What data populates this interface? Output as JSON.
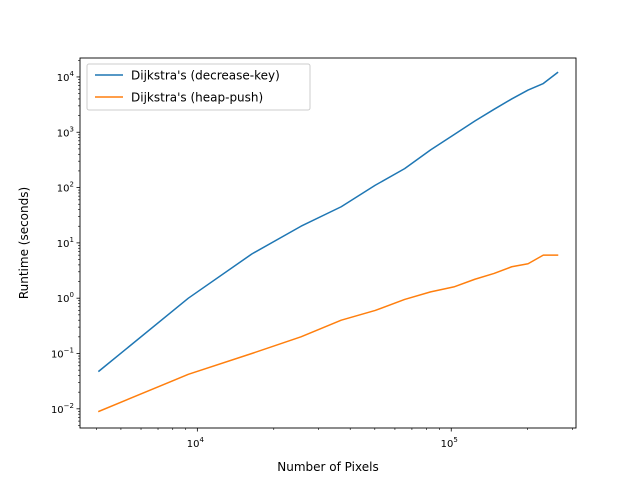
{
  "chart_data": {
    "type": "line",
    "title": "",
    "xlabel": "Number of Pixels",
    "ylabel": "Runtime (seconds)",
    "xscale": "log",
    "yscale": "log",
    "xlim": [
      3450,
      310000
    ],
    "ylim": [
      0.0045,
      22000
    ],
    "grid": false,
    "legend": "top-left",
    "x_ticks": [
      {
        "value": 10000,
        "label": "10",
        "exp": "4"
      },
      {
        "value": 100000,
        "label": "10",
        "exp": "5"
      }
    ],
    "y_ticks": [
      {
        "value": 0.01,
        "label": "10",
        "exp": "−2"
      },
      {
        "value": 0.1,
        "label": "10",
        "exp": "−1"
      },
      {
        "value": 1,
        "label": "10",
        "exp": "0"
      },
      {
        "value": 10,
        "label": "10",
        "exp": "1"
      },
      {
        "value": 100,
        "label": "10",
        "exp": "2"
      },
      {
        "value": 1000,
        "label": "10",
        "exp": "3"
      },
      {
        "value": 10000,
        "label": "10",
        "exp": "4"
      }
    ],
    "series": [
      {
        "name": "Dijkstra's (decrease-key)",
        "color": "#1f77b4",
        "x": [
          4096,
          9216,
          16384,
          25600,
          36864,
          50176,
          65536,
          82944,
          102400,
          123904,
          147456,
          173056,
          200704,
          230400,
          262144
        ],
        "y": [
          0.048,
          1.0,
          6.3,
          20,
          45,
          110,
          220,
          480,
          900,
          1600,
          2600,
          4000,
          5800,
          7600,
          12000
        ]
      },
      {
        "name": "Dijkstra's (heap-push)",
        "color": "#ff7f0e",
        "x": [
          4096,
          9216,
          16384,
          25600,
          36864,
          50176,
          65536,
          82944,
          102400,
          123904,
          147456,
          173056,
          200704,
          230400,
          262144
        ],
        "y": [
          0.009,
          0.042,
          0.1,
          0.2,
          0.4,
          0.6,
          0.95,
          1.3,
          1.6,
          2.2,
          2.8,
          3.7,
          4.2,
          6.0,
          6.0
        ]
      }
    ]
  }
}
